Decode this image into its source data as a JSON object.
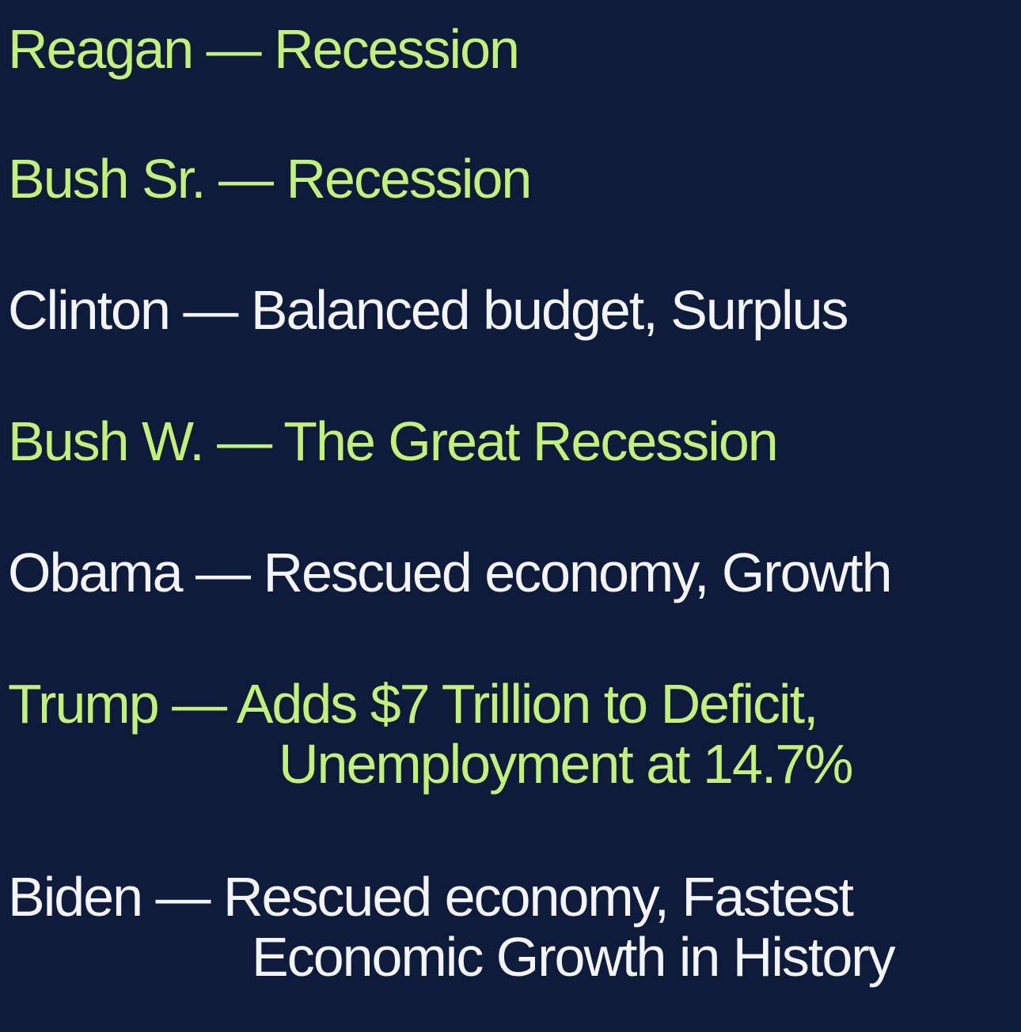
{
  "colors": {
    "background": "#0f1b3a",
    "recession_text": "#c3f07a",
    "positive_text": "#f2f4f8"
  },
  "items": [
    {
      "president": "Reagan",
      "outcome": "Recession",
      "tone": "negative"
    },
    {
      "president": "Bush Sr.",
      "outcome": "Recession",
      "tone": "negative"
    },
    {
      "president": "Clinton",
      "outcome": "Balanced budget, Surplus",
      "tone": "positive"
    },
    {
      "president": "Bush W.",
      "outcome": "The Great Recession",
      "tone": "negative"
    },
    {
      "president": "Obama",
      "outcome": "Rescued economy, Growth",
      "tone": "positive"
    },
    {
      "president": "Trump",
      "outcome": "Adds $7 Trillion to Deficit,",
      "outcome_cont": "Unemployment at 14.7%",
      "tone": "negative"
    },
    {
      "president": "Biden",
      "outcome": "Rescued economy,  Fastest",
      "outcome_cont": "Economic Growth in History",
      "tone": "positive"
    }
  ],
  "separator": "—"
}
